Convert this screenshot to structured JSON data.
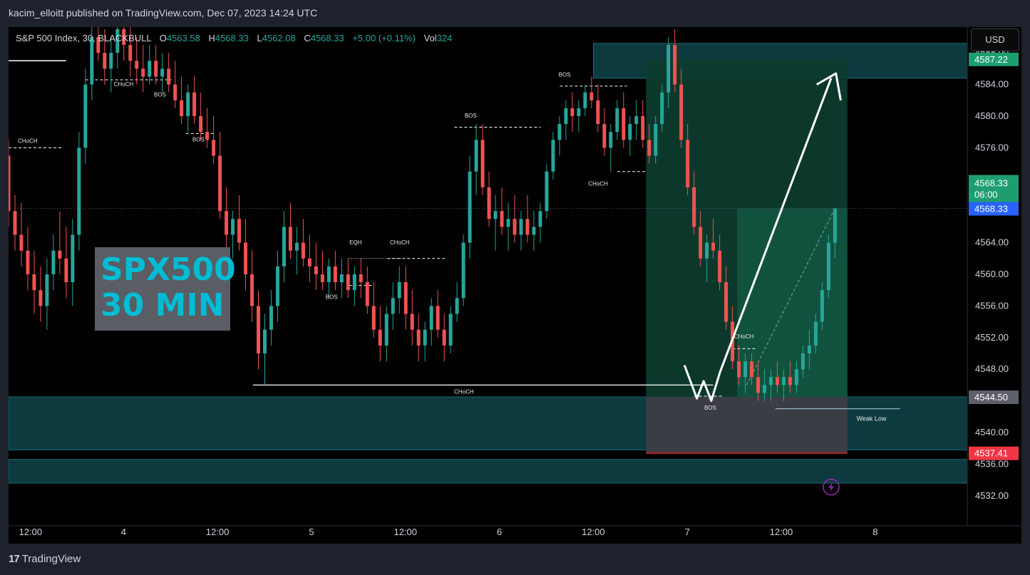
{
  "header": {
    "published_text": "kacim_elloitt published on TradingView.com, Dec 07, 2023 14:24 UTC"
  },
  "legend": {
    "symbol": "S&P 500 Index, 30, BLACKBULL",
    "o_label": "O",
    "o_value": "4563.58",
    "h_label": "H",
    "h_value": "4568.33",
    "l_label": "L",
    "l_value": "4562.08",
    "c_label": "C",
    "c_value": "4568.33",
    "change": "+5.00 (+0.11%)",
    "vol_label": "Vol",
    "vol_value": "324"
  },
  "currency_button": "USD",
  "overlay_box": {
    "line1": "SPX500",
    "line2": "30 MIN"
  },
  "footer": {
    "brand": "TradingView",
    "brand_mark": "17"
  },
  "colors": {
    "bull": "#26a69a",
    "bear": "#ef5350",
    "zone": "#0c3a3f",
    "target_zone": "#0d3b2e",
    "stop_zone": "#3a3d43",
    "current_price_tag": "#2962ff",
    "target_tag": "#1e9e6f",
    "stop_tag": "#f23645"
  },
  "chart_data": {
    "type": "candlestick",
    "symbol": "S&P 500 Index",
    "interval": "30",
    "ylim": [
      4530,
      4590
    ],
    "y_ticks": [
      4532,
      4536,
      4540,
      4544,
      4548,
      4552,
      4556,
      4560,
      4564,
      4568,
      4572,
      4576,
      4580,
      4584,
      4588
    ],
    "y_tick_labels": [
      "4532.00",
      "4536.00",
      "4540.00",
      "",
      "4548.00",
      "4552.00",
      "4556.00",
      "4560.00",
      "4564.00",
      "",
      "",
      "4576.00",
      "4580.00",
      "4584.00",
      "4588.00"
    ],
    "x_ticks": [
      {
        "label": "12:00",
        "t": 0.017
      },
      {
        "label": "4",
        "t": 0.114
      },
      {
        "label": "12:00",
        "t": 0.212
      },
      {
        "label": "5",
        "t": 0.31
      },
      {
        "label": "12:00",
        "t": 0.408
      },
      {
        "label": "6",
        "t": 0.506
      },
      {
        "label": "12:00",
        "t": 0.604
      },
      {
        "label": "7",
        "t": 0.702
      },
      {
        "label": "12:00",
        "t": 0.8
      },
      {
        "label": "8",
        "t": 0.898
      }
    ],
    "price_tags": [
      {
        "label": "4587.22",
        "value": 4587.22,
        "kind": "target"
      },
      {
        "label": "4568.33",
        "value": 4568.33,
        "kind": "last",
        "sub": "06:00"
      },
      {
        "label": "4568.33",
        "value": 4568.33,
        "kind": "current"
      },
      {
        "label": "4544.50",
        "value": 4544.5,
        "kind": "entry"
      },
      {
        "label": "4537.41",
        "value": 4537.41,
        "kind": "stop"
      }
    ],
    "last_price": 4568.33,
    "zones": [
      {
        "from": 4584.8,
        "to": 4589.2,
        "t0": 0.61,
        "t1": 1.0
      },
      {
        "from": 4537.8,
        "to": 4544.5,
        "t0": 0.0,
        "t1": 1.0
      },
      {
        "from": 4533.6,
        "to": 4536.6,
        "t0": 0.0,
        "t1": 1.0
      }
    ],
    "position": {
      "entry": 4544.5,
      "target": 4587.22,
      "stop": 4537.41,
      "t0": 0.665,
      "t1": 0.875
    },
    "annotations": [
      {
        "text": "CHoCH",
        "price": 4576.6,
        "t": 0.02
      },
      {
        "text": "CHoCH",
        "price": 4583.8,
        "t": 0.12
      },
      {
        "text": "BOS",
        "price": 4582.5,
        "t": 0.158
      },
      {
        "text": "BOS",
        "price": 4576.8,
        "t": 0.198
      },
      {
        "text": "BOS",
        "price": 4579.8,
        "t": 0.482
      },
      {
        "text": "BOS",
        "price": 4585.0,
        "t": 0.58
      },
      {
        "text": "CHoCH",
        "price": 4571.2,
        "t": 0.615
      },
      {
        "text": "EQH",
        "price": 4563.8,
        "t": 0.362
      },
      {
        "text": "CHoCH",
        "price": 4563.8,
        "t": 0.408
      },
      {
        "text": "BOS",
        "price": 4556.9,
        "t": 0.337
      },
      {
        "text": "CHoCH",
        "price": 4544.9,
        "t": 0.475
      },
      {
        "text": "BOS",
        "price": 4542.9,
        "t": 0.732
      },
      {
        "text": "CHoCH",
        "price": 4551.9,
        "t": 0.767
      },
      {
        "text": "Weak Low",
        "price": 4541.5,
        "t": 0.9
      }
    ],
    "candles": [
      [
        4575,
        4577,
        4566,
        4568
      ],
      [
        4568,
        4570,
        4563,
        4565
      ],
      [
        4565,
        4569,
        4561,
        4563
      ],
      [
        4563,
        4566,
        4558,
        4560
      ],
      [
        4560,
        4563,
        4555,
        4558
      ],
      [
        4558,
        4561,
        4554,
        4556
      ],
      [
        4556,
        4562,
        4553,
        4560
      ],
      [
        4560,
        4565,
        4558,
        4563
      ],
      [
        4563,
        4568,
        4560,
        4562
      ],
      [
        4562,
        4566,
        4557,
        4559
      ],
      [
        4559,
        4567,
        4556,
        4565
      ],
      [
        4565,
        4578,
        4563,
        4576
      ],
      [
        4576,
        4586,
        4574,
        4584
      ],
      [
        4584,
        4592,
        4582,
        4590
      ],
      [
        4590,
        4593,
        4587,
        4588
      ],
      [
        4588,
        4591,
        4584,
        4586
      ],
      [
        4586,
        4590,
        4583,
        4588
      ],
      [
        4588,
        4593,
        4586,
        4591
      ],
      [
        4591,
        4594,
        4587,
        4589
      ],
      [
        4589,
        4592,
        4585,
        4587
      ],
      [
        4587,
        4590,
        4584,
        4586
      ],
      [
        4586,
        4589,
        4583,
        4585
      ],
      [
        4585,
        4589,
        4584,
        4587
      ],
      [
        4587,
        4589,
        4584,
        4585
      ],
      [
        4585,
        4588,
        4583,
        4586
      ],
      [
        4586,
        4588,
        4583,
        4584
      ],
      [
        4584,
        4587,
        4581,
        4582
      ],
      [
        4582,
        4585,
        4579,
        4580
      ],
      [
        4580,
        4584,
        4578,
        4583
      ],
      [
        4583,
        4585,
        4579,
        4580
      ],
      [
        4580,
        4583,
        4577,
        4578
      ],
      [
        4578,
        4581,
        4576,
        4577
      ],
      [
        4577,
        4580,
        4574,
        4575
      ],
      [
        4575,
        4578,
        4567,
        4568
      ],
      [
        4568,
        4571,
        4563,
        4565
      ],
      [
        4565,
        4568,
        4562,
        4567
      ],
      [
        4567,
        4570,
        4563,
        4564
      ],
      [
        4564,
        4567,
        4558,
        4560
      ],
      [
        4560,
        4563,
        4554,
        4556
      ],
      [
        4556,
        4558,
        4548,
        4550
      ],
      [
        4550,
        4555,
        4546,
        4553
      ],
      [
        4553,
        4558,
        4551,
        4556
      ],
      [
        4556,
        4563,
        4554,
        4561
      ],
      [
        4561,
        4568,
        4559,
        4566
      ],
      [
        4566,
        4569,
        4562,
        4563
      ],
      [
        4563,
        4566,
        4560,
        4564
      ],
      [
        4564,
        4567,
        4561,
        4562
      ],
      [
        4562,
        4565,
        4559,
        4561
      ],
      [
        4561,
        4564,
        4558,
        4560
      ],
      [
        4560,
        4563,
        4558,
        4559
      ],
      [
        4559,
        4562,
        4557,
        4561
      ],
      [
        4561,
        4563,
        4558,
        4559
      ],
      [
        4559,
        4562,
        4557,
        4560
      ],
      [
        4560,
        4562,
        4557,
        4558
      ],
      [
        4558,
        4561,
        4556,
        4560
      ],
      [
        4560,
        4562,
        4557,
        4559
      ],
      [
        4559,
        4561,
        4555,
        4556
      ],
      [
        4556,
        4559,
        4552,
        4553
      ],
      [
        4553,
        4556,
        4549,
        4551
      ],
      [
        4551,
        4556,
        4549,
        4555
      ],
      [
        4555,
        4559,
        4553,
        4557
      ],
      [
        4557,
        4561,
        4555,
        4559
      ],
      [
        4559,
        4561,
        4553,
        4555
      ],
      [
        4555,
        4558,
        4551,
        4553
      ],
      [
        4553,
        4555,
        4549,
        4551
      ],
      [
        4551,
        4554,
        4549,
        4553
      ],
      [
        4553,
        4557,
        4551,
        4556
      ],
      [
        4556,
        4558,
        4552,
        4553
      ],
      [
        4553,
        4555,
        4549,
        4551
      ],
      [
        4551,
        4556,
        4550,
        4555
      ],
      [
        4555,
        4559,
        4554,
        4557
      ],
      [
        4557,
        4565,
        4556,
        4564
      ],
      [
        4564,
        4575,
        4562,
        4573
      ],
      [
        4573,
        4579,
        4570,
        4577
      ],
      [
        4577,
        4579,
        4570,
        4571
      ],
      [
        4571,
        4573,
        4566,
        4567
      ],
      [
        4567,
        4570,
        4563,
        4568
      ],
      [
        4568,
        4571,
        4565,
        4566
      ],
      [
        4566,
        4569,
        4563,
        4567
      ],
      [
        4567,
        4570,
        4564,
        4565
      ],
      [
        4565,
        4568,
        4563,
        4567
      ],
      [
        4567,
        4570,
        4564,
        4565
      ],
      [
        4565,
        4568,
        4563,
        4566
      ],
      [
        4566,
        4569,
        4564,
        4568
      ],
      [
        4568,
        4574,
        4567,
        4573
      ],
      [
        4573,
        4578,
        4572,
        4577
      ],
      [
        4577,
        4580,
        4575,
        4579
      ],
      [
        4579,
        4582,
        4577,
        4581
      ],
      [
        4581,
        4583,
        4578,
        4580
      ],
      [
        4580,
        4582,
        4578,
        4581
      ],
      [
        4581,
        4584,
        4580,
        4583
      ],
      [
        4583,
        4585,
        4581,
        4582
      ],
      [
        4582,
        4584,
        4578,
        4579
      ],
      [
        4579,
        4581,
        4575,
        4576
      ],
      [
        4576,
        4579,
        4573,
        4578
      ],
      [
        4578,
        4582,
        4577,
        4581
      ],
      [
        4581,
        4583,
        4576,
        4577
      ],
      [
        4577,
        4580,
        4575,
        4579
      ],
      [
        4579,
        4582,
        4577,
        4580
      ],
      [
        4580,
        4582,
        4576,
        4577
      ],
      [
        4577,
        4579,
        4574,
        4575
      ],
      [
        4575,
        4580,
        4574,
        4579
      ],
      [
        4579,
        4584,
        4578,
        4583
      ],
      [
        4583,
        4590,
        4581,
        4589
      ],
      [
        4589,
        4591,
        4583,
        4584
      ],
      [
        4584,
        4586,
        4576,
        4577
      ],
      [
        4577,
        4579,
        4570,
        4571
      ],
      [
        4571,
        4573,
        4565,
        4566
      ],
      [
        4566,
        4568,
        4561,
        4562
      ],
      [
        4562,
        4565,
        4559,
        4564
      ],
      [
        4564,
        4567,
        4562,
        4563
      ],
      [
        4563,
        4565,
        4558,
        4559
      ],
      [
        4559,
        4561,
        4553,
        4554
      ],
      [
        4554,
        4556,
        4548,
        4549
      ],
      [
        4549,
        4551,
        4546,
        4547
      ],
      [
        4547,
        4550,
        4545,
        4549
      ],
      [
        4549,
        4550,
        4546,
        4547
      ],
      [
        4547,
        4549,
        4544,
        4545
      ],
      [
        4545,
        4548,
        4544,
        4546
      ],
      [
        4546,
        4548,
        4544,
        4547
      ],
      [
        4547,
        4549,
        4545,
        4546
      ],
      [
        4546,
        4548,
        4544,
        4547
      ],
      [
        4547,
        4549,
        4545,
        4546
      ],
      [
        4546,
        4549,
        4545,
        4548
      ],
      [
        4548,
        4551,
        4547,
        4550
      ],
      [
        4550,
        4553,
        4548,
        4551
      ],
      [
        4551,
        4555,
        4550,
        4554
      ],
      [
        4554,
        4559,
        4553,
        4558
      ],
      [
        4558,
        4565,
        4557,
        4564
      ],
      [
        4564,
        4568.33,
        4562.08,
        4568.33
      ]
    ]
  }
}
